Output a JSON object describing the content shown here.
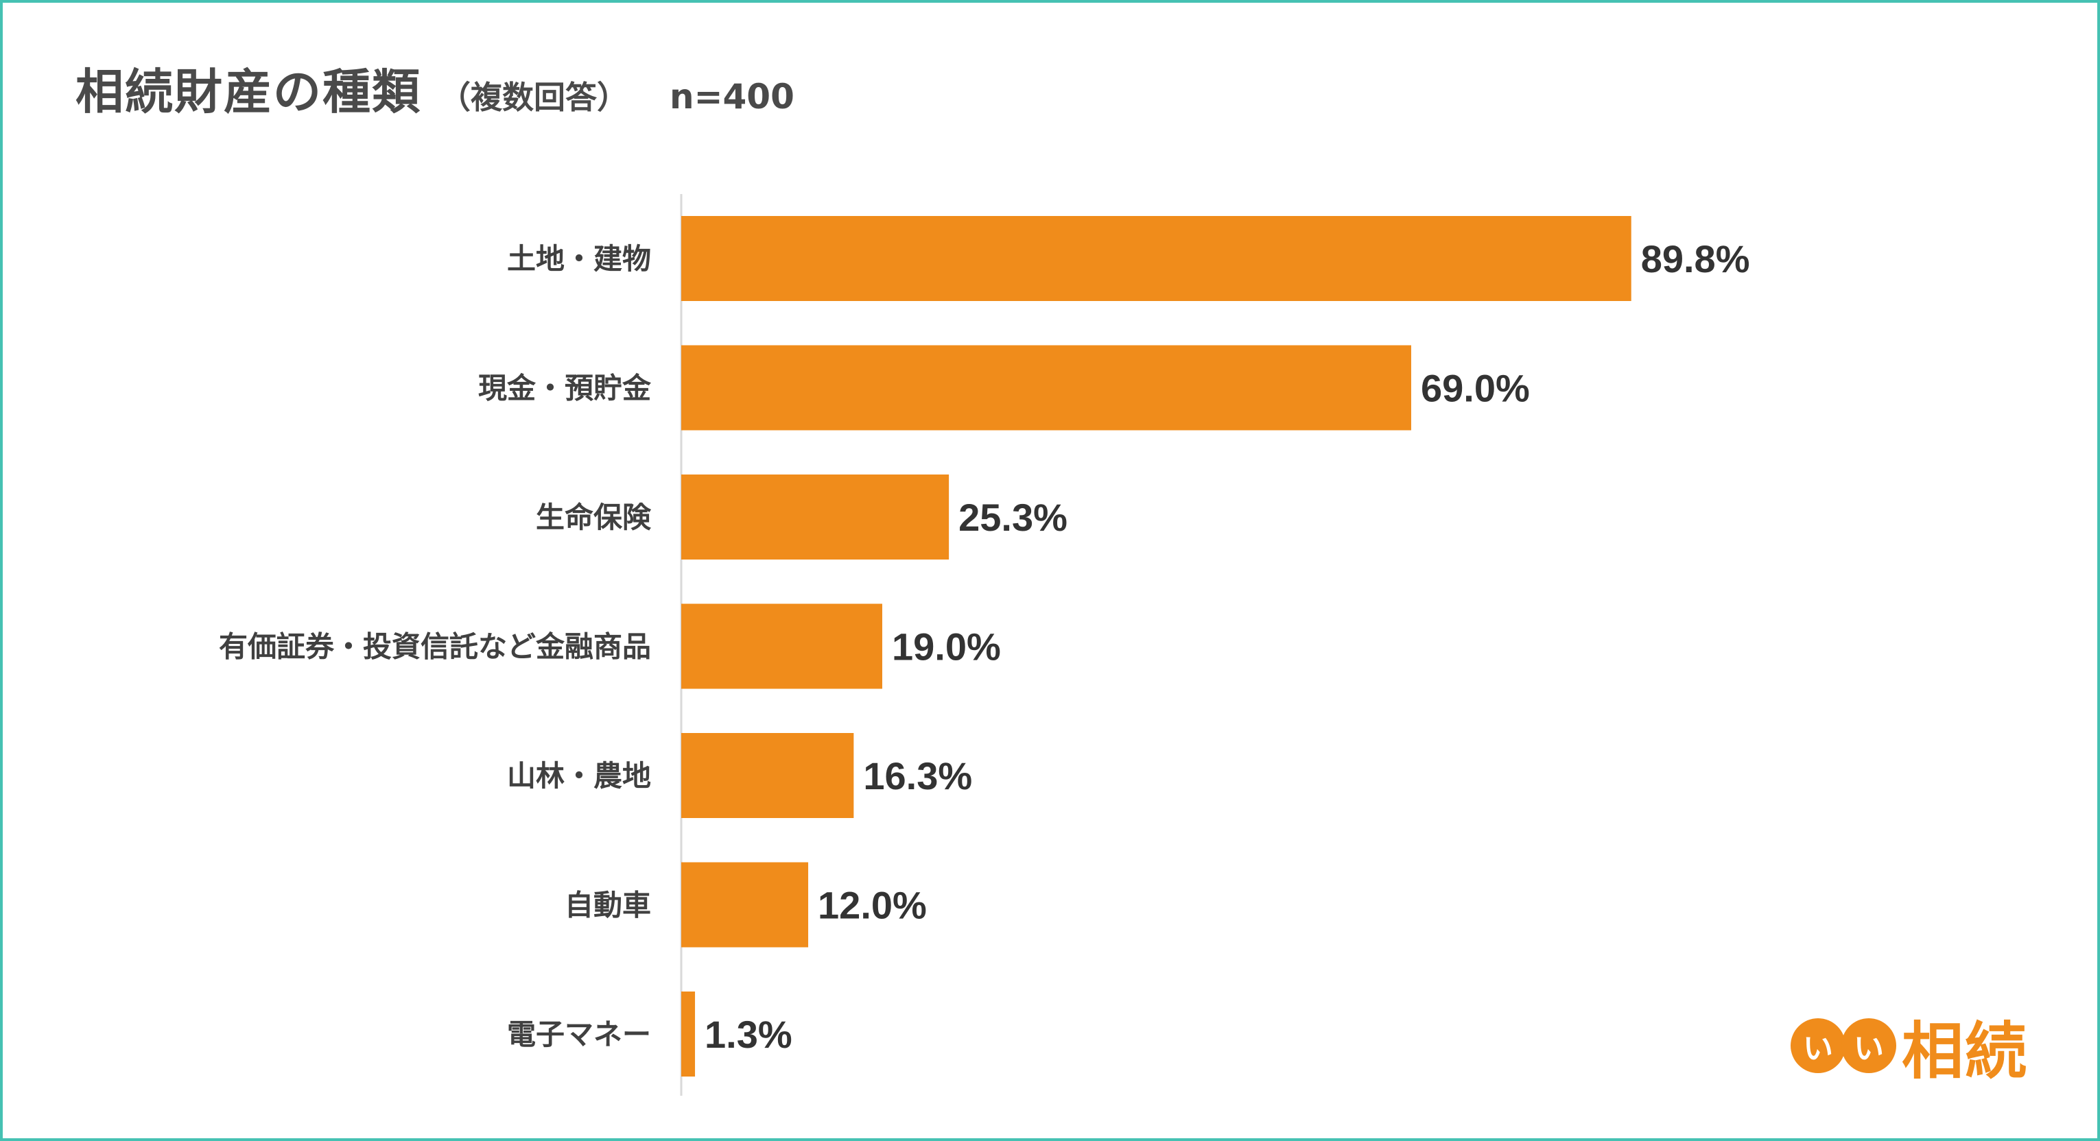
{
  "header": {
    "title": "相続財産の種類",
    "subtitle": "（複数回答）",
    "sample": "n=400"
  },
  "logo": {
    "badge": [
      "い",
      "い"
    ],
    "text": "相続"
  },
  "colors": {
    "bar": "#f08c1b",
    "frame": "#45c1b3",
    "axis": "#d9d9d9"
  },
  "chart_data": {
    "type": "bar",
    "orientation": "horizontal",
    "categories": [
      "土地・建物",
      "現金・預貯金",
      "生命保険",
      "有価証券・投資信託など金融商品",
      "山林・農地",
      "自動車",
      "電子マネー"
    ],
    "values": [
      89.8,
      69.0,
      25.3,
      19.0,
      16.3,
      12.0,
      1.3
    ],
    "value_labels": [
      "89.8%",
      "69.0%",
      "25.3%",
      "19.0%",
      "16.3%",
      "12.0%",
      "1.3%"
    ],
    "title": "相続財産の種類",
    "xlim": [
      0,
      100
    ],
    "grid": false,
    "legend": "none"
  }
}
